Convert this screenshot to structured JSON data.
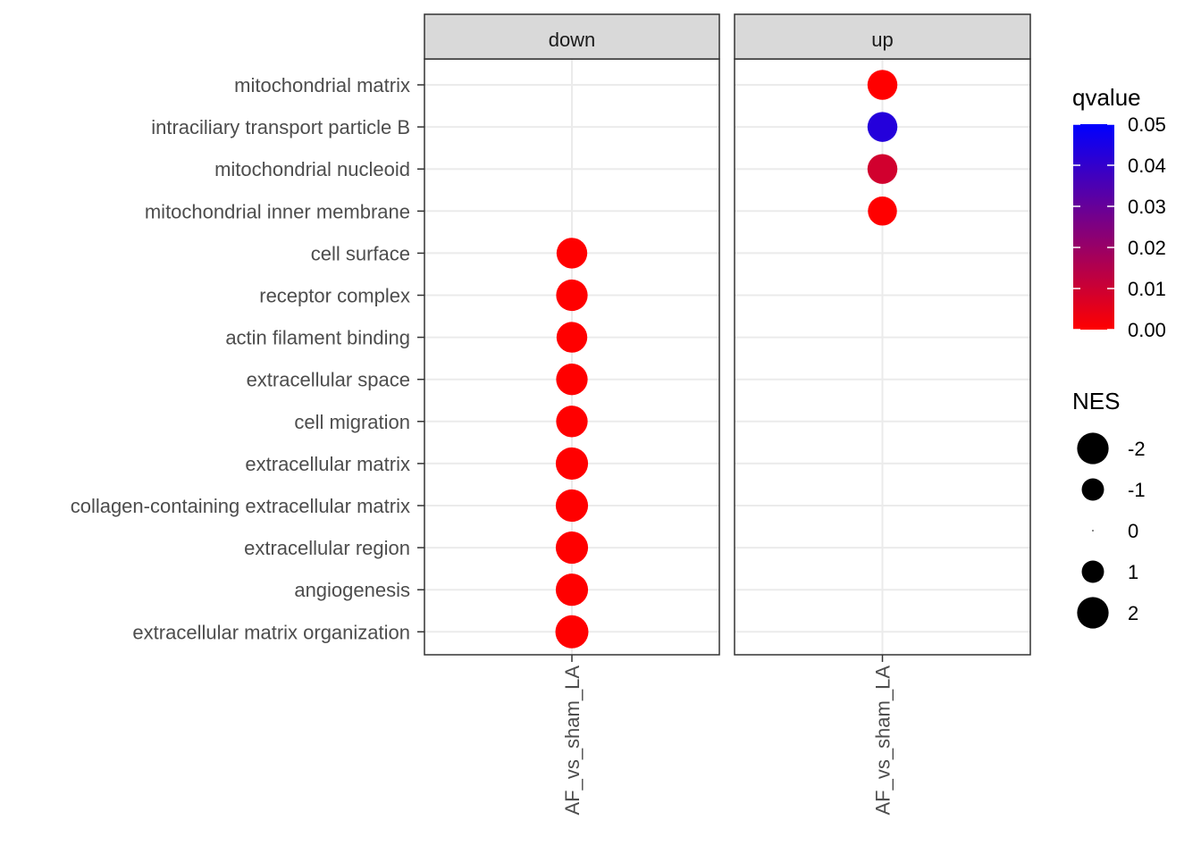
{
  "chart_data": {
    "type": "scatter",
    "facets": [
      "down",
      "up"
    ],
    "x_tick_label": "AF_vs_sham_LA",
    "categories": [
      "mitochondrial matrix",
      "intraciliary transport particle B",
      "mitochondrial nucleoid",
      "mitochondrial inner membrane",
      "cell surface",
      "receptor complex",
      "actin filament binding",
      "extracellular space",
      "cell migration",
      "extracellular matrix",
      "collagen-containing extracellular matrix",
      "extracellular region",
      "angiogenesis",
      "extracellular matrix organization"
    ],
    "points": [
      {
        "facet": "up",
        "category": "mitochondrial matrix",
        "qvalue": 0.0,
        "NES": 1.8
      },
      {
        "facet": "up",
        "category": "intraciliary transport particle B",
        "qvalue": 0.043,
        "NES": 1.8
      },
      {
        "facet": "up",
        "category": "mitochondrial nucleoid",
        "qvalue": 0.009,
        "NES": 1.8
      },
      {
        "facet": "up",
        "category": "mitochondrial inner membrane",
        "qvalue": 0.0,
        "NES": 1.7
      },
      {
        "facet": "down",
        "category": "cell surface",
        "qvalue": 0.0,
        "NES": -1.9
      },
      {
        "facet": "down",
        "category": "receptor complex",
        "qvalue": 0.0,
        "NES": -2.0
      },
      {
        "facet": "down",
        "category": "actin filament binding",
        "qvalue": 0.0,
        "NES": -1.9
      },
      {
        "facet": "down",
        "category": "extracellular space",
        "qvalue": 0.0,
        "NES": -2.0
      },
      {
        "facet": "down",
        "category": "cell migration",
        "qvalue": 0.0,
        "NES": -2.0
      },
      {
        "facet": "down",
        "category": "extracellular matrix",
        "qvalue": 0.0,
        "NES": -2.1
      },
      {
        "facet": "down",
        "category": "collagen-containing extracellular matrix",
        "qvalue": 0.0,
        "NES": -2.1
      },
      {
        "facet": "down",
        "category": "extracellular region",
        "qvalue": 0.0,
        "NES": -2.1
      },
      {
        "facet": "down",
        "category": "angiogenesis",
        "qvalue": 0.0,
        "NES": -2.1
      },
      {
        "facet": "down",
        "category": "extracellular matrix organization",
        "qvalue": 0.0,
        "NES": -2.2
      }
    ],
    "color_legend": {
      "title": "qvalue",
      "ticks": [
        "0.05",
        "0.04",
        "0.03",
        "0.02",
        "0.01",
        "0.00"
      ],
      "range": [
        0.0,
        0.05
      ],
      "low_color": "#ff0000",
      "high_color": "#0000ff"
    },
    "size_legend": {
      "title": "NES",
      "labels": [
        "-2",
        "-1",
        "0",
        "1",
        "2"
      ],
      "values": [
        -2,
        -1,
        0,
        1,
        2
      ]
    },
    "grid": true,
    "legend_position": "right",
    "colors": {
      "strip_fill": "#d9d9d9",
      "panel_border": "#333333",
      "grid_line": "#ebebeb",
      "text": "#4d4d4d"
    }
  }
}
